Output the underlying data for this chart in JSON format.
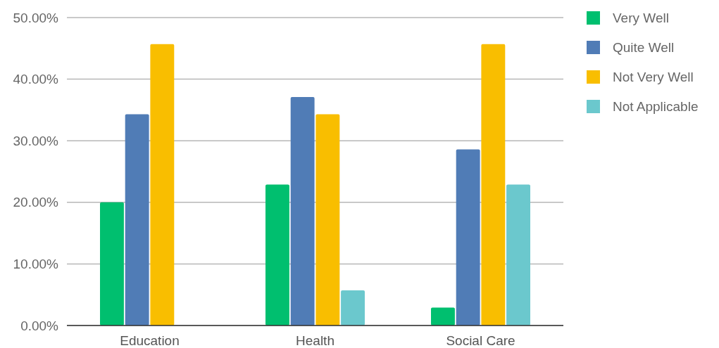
{
  "chart_data": {
    "type": "bar",
    "categories": [
      "Education",
      "Health",
      "Social Care"
    ],
    "series": [
      {
        "name": "Very Well",
        "color": "#00bf6f",
        "values": [
          20.0,
          22.9,
          2.9
        ]
      },
      {
        "name": "Quite Well",
        "color": "#507cb6",
        "values": [
          34.3,
          37.1,
          28.6
        ]
      },
      {
        "name": "Not Very Well",
        "color": "#f9be00",
        "values": [
          45.7,
          34.3,
          45.7
        ]
      },
      {
        "name": "Not Applicable",
        "color": "#6bc8cd",
        "values": [
          0,
          5.7,
          22.9
        ]
      }
    ],
    "ylim": [
      0,
      50
    ],
    "yticks": [
      {
        "value": 0,
        "label": "0.00%"
      },
      {
        "value": 10,
        "label": "10.00%"
      },
      {
        "value": 20,
        "label": "20.00%"
      },
      {
        "value": 30,
        "label": "30.00%"
      },
      {
        "value": 40,
        "label": "40.00%"
      },
      {
        "value": 50,
        "label": "50.00%"
      }
    ],
    "grid": "y",
    "legend": "right"
  }
}
